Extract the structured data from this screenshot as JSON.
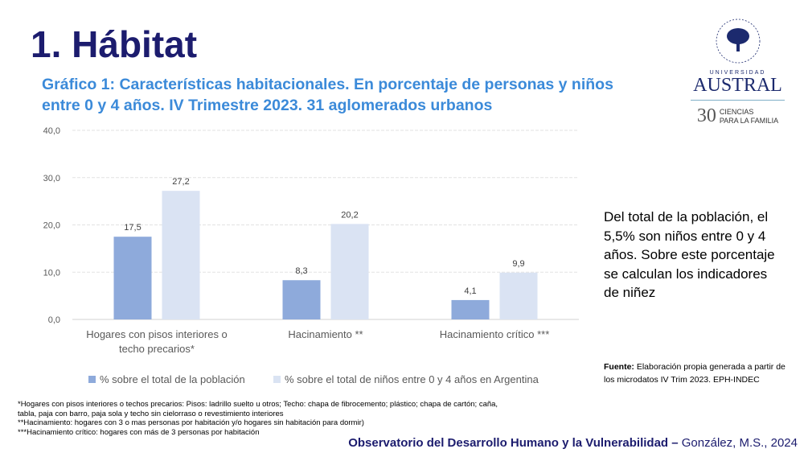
{
  "title": "1.  Hábitat",
  "logo": {
    "name": "UNIVERSIDAD AUSTRAL",
    "sub1": "UNIVERSIDAD",
    "sub2": "AUSTRAL",
    "years": "30",
    "tag1": "CIENCIAS",
    "tag2": "PARA LA FAMILIA",
    "seal_text": "STUDIUM · AUSTRALIS · UNIVERSITAS"
  },
  "side_text": "Del total de la población, el 5,5% son niños entre 0 y 4 años. Sobre este porcentaje se calculan los indicadores de niñez",
  "source": {
    "label": "Fuente:",
    "text": " Elaboración propia generada a partir de los microdatos IV Trim 2023. EPH-INDEC"
  },
  "notes": [
    "*Hogares con pisos interiores o techos precarios: Pisos: ladrillo suelto u otros; Techo: chapa de fibrocemento; plástico; chapa de cartón; caña, tabla, paja con barro, paja sola y techo sin cielorraso o revestimiento interiores",
    "**Hacinamiento: hogares con 3 o mas personas por habitación y/o hogares sin habitación para dormir)",
    "***Hacinamiento crítico: hogares con más de 3 personas por habitación"
  ],
  "footer": {
    "bold": "Observatorio del Desarrollo Humano y la Vulnerabilidad – ",
    "normal": "González, M.S., 2024"
  },
  "chart_data": {
    "type": "bar",
    "title": "Gráfico 1: Características habitacionales. En porcentaje de personas y niños entre 0 y 4 años.  IV Trimestre 2023. 31 aglomerados urbanos",
    "categories": [
      "Hogares con pisos interiores o techo precarios*",
      "Hacinamiento **",
      "Hacinamiento crítico ***"
    ],
    "series": [
      {
        "name": "% sobre el total de la población",
        "values": [
          17.5,
          8.3,
          4.1
        ],
        "color": "#8eaadb",
        "labels": [
          "17,5",
          "8,3",
          "4,1"
        ]
      },
      {
        "name": "% sobre el total de niños entre 0 y 4 años en Argentina",
        "values": [
          27.2,
          20.2,
          9.9
        ],
        "color": "#dae3f3",
        "labels": [
          "27,2",
          "20,2",
          "9,9"
        ]
      }
    ],
    "ylim": [
      0,
      40
    ],
    "yticks": [
      "0,0",
      "10,0",
      "20,0",
      "30,0",
      "40,0"
    ],
    "grid": true,
    "legend": "bottom"
  }
}
